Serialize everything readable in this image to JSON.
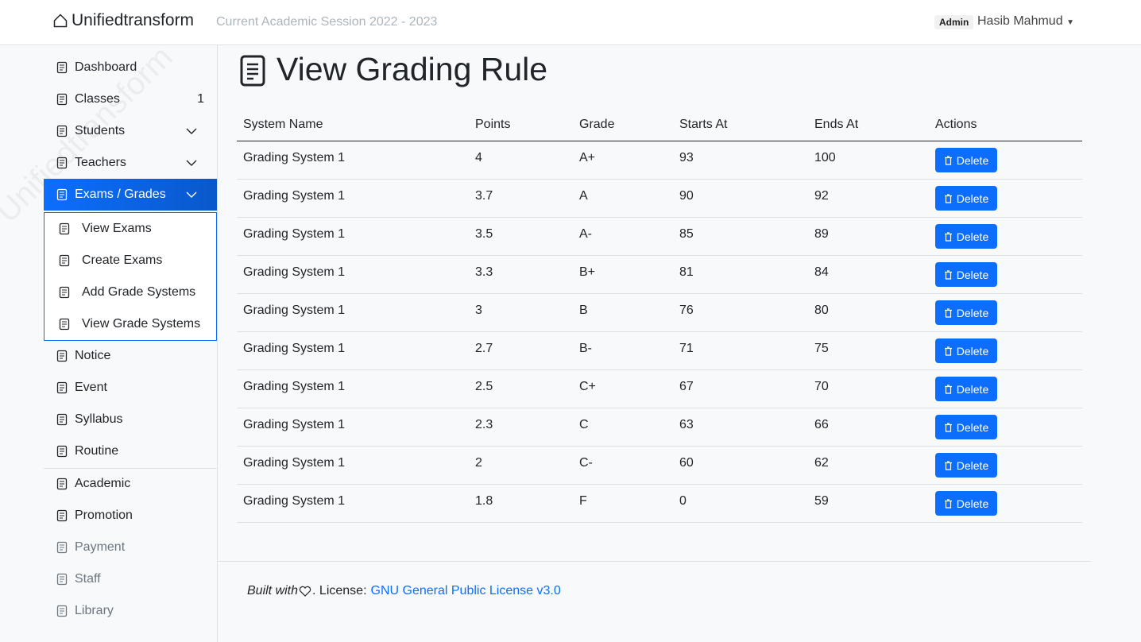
{
  "header": {
    "brand": "Unifiedtransform",
    "session": "Current Academic Session 2022 - 2023",
    "role": "Admin",
    "user": "Hasib Mahmud"
  },
  "sidebar": {
    "watermark": "Unifiedtransform",
    "items": [
      {
        "label": "Dashboard"
      },
      {
        "label": "Classes",
        "badge": "1"
      },
      {
        "label": "Students"
      },
      {
        "label": "Teachers"
      },
      {
        "label": "Exams / Grades",
        "submenu": [
          "View Exams",
          "Create Exams",
          "Add Grade Systems",
          "View Grade Systems"
        ]
      },
      {
        "label": "Notice"
      },
      {
        "label": "Event"
      },
      {
        "label": "Syllabus"
      },
      {
        "label": "Routine"
      },
      {
        "label": "Academic"
      },
      {
        "label": "Promotion"
      },
      {
        "label": "Payment"
      },
      {
        "label": "Staff"
      },
      {
        "label": "Library"
      }
    ]
  },
  "main": {
    "title": "View Grading Rule",
    "table": {
      "columns": [
        "System Name",
        "Points",
        "Grade",
        "Starts At",
        "Ends At",
        "Actions"
      ],
      "action": "Delete",
      "rows": [
        [
          "Grading System 1",
          "4",
          "A+",
          "93",
          "100"
        ],
        [
          "Grading System 1",
          "3.7",
          "A",
          "90",
          "92"
        ],
        [
          "Grading System 1",
          "3.5",
          "A-",
          "85",
          "89"
        ],
        [
          "Grading System 1",
          "3.3",
          "B+",
          "81",
          "84"
        ],
        [
          "Grading System 1",
          "3",
          "B",
          "76",
          "80"
        ],
        [
          "Grading System 1",
          "2.7",
          "B-",
          "71",
          "75"
        ],
        [
          "Grading System 1",
          "2.5",
          "C+",
          "67",
          "70"
        ],
        [
          "Grading System 1",
          "2.3",
          "C",
          "63",
          "66"
        ],
        [
          "Grading System 1",
          "2",
          "C-",
          "60",
          "62"
        ],
        [
          "Grading System 1",
          "1.8",
          "F",
          "0",
          "59"
        ]
      ]
    }
  },
  "footer": {
    "built_with": "Built with",
    "license_prefix": ". License:",
    "license_link": "GNU General Public License v3.0"
  }
}
